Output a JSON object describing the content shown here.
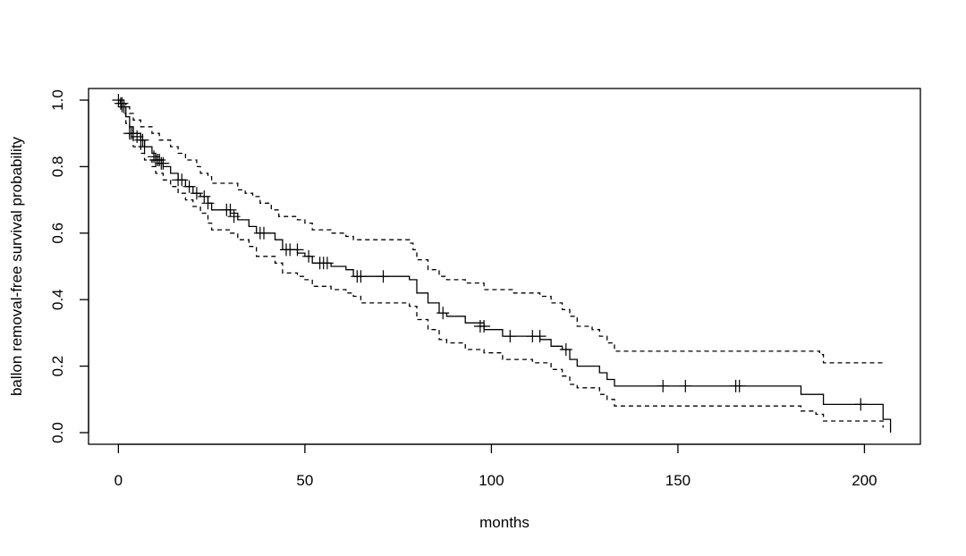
{
  "chart_data": {
    "type": "line",
    "title": "",
    "xlabel": "months",
    "ylabel": "ballon removal-free survival probability",
    "xlim": [
      -8,
      215
    ],
    "ylim": [
      -0.035,
      1.035
    ],
    "x_ticks": [
      0,
      50,
      100,
      150,
      200
    ],
    "x_tick_labels": [
      "0",
      "50",
      "100",
      "150",
      "200"
    ],
    "y_ticks": [
      0.0,
      0.2,
      0.4,
      0.6,
      0.8,
      1.0
    ],
    "y_tick_labels": [
      "0.0",
      "0.2",
      "0.4",
      "0.6",
      "0.8",
      "1.0"
    ],
    "grid": false,
    "legend": "none",
    "series": [
      {
        "role": "estimate",
        "style": "solid",
        "color": "#000000",
        "steps": [
          [
            0,
            1.0
          ],
          [
            0.5,
            0.99
          ],
          [
            1,
            0.98
          ],
          [
            2,
            0.95
          ],
          [
            3,
            0.92
          ],
          [
            4,
            0.9
          ],
          [
            6,
            0.88
          ],
          [
            7,
            0.86
          ],
          [
            9,
            0.84
          ],
          [
            10,
            0.82
          ],
          [
            12,
            0.8
          ],
          [
            14,
            0.78
          ],
          [
            16,
            0.76
          ],
          [
            18,
            0.74
          ],
          [
            20,
            0.72
          ],
          [
            22,
            0.71
          ],
          [
            24,
            0.69
          ],
          [
            25,
            0.67
          ],
          [
            30,
            0.66
          ],
          [
            32,
            0.64
          ],
          [
            35,
            0.62
          ],
          [
            37,
            0.6
          ],
          [
            42,
            0.58
          ],
          [
            44,
            0.55
          ],
          [
            48,
            0.54
          ],
          [
            50,
            0.53
          ],
          [
            52,
            0.51
          ],
          [
            57,
            0.5
          ],
          [
            61,
            0.49
          ],
          [
            63,
            0.47
          ],
          [
            78,
            0.46
          ],
          [
            80,
            0.42
          ],
          [
            83,
            0.39
          ],
          [
            86,
            0.36
          ],
          [
            88,
            0.35
          ],
          [
            93,
            0.33
          ],
          [
            98,
            0.31
          ],
          [
            103,
            0.29
          ],
          [
            113,
            0.28
          ],
          [
            116,
            0.26
          ],
          [
            119,
            0.25
          ],
          [
            121,
            0.22
          ],
          [
            123,
            0.2
          ],
          [
            129,
            0.18
          ],
          [
            131,
            0.16
          ],
          [
            133,
            0.14
          ],
          [
            183,
            0.115
          ],
          [
            189,
            0.085
          ],
          [
            205,
            0.04
          ],
          [
            207,
            0.0
          ]
        ],
        "end_x": 207
      },
      {
        "role": "upper-ci",
        "style": "dashed",
        "color": "#000000",
        "steps": [
          [
            0,
            1.0
          ],
          [
            1,
            0.99
          ],
          [
            2,
            0.98
          ],
          [
            3,
            0.96
          ],
          [
            4,
            0.94
          ],
          [
            6,
            0.92
          ],
          [
            9,
            0.9
          ],
          [
            11,
            0.88
          ],
          [
            14,
            0.86
          ],
          [
            16,
            0.84
          ],
          [
            18,
            0.82
          ],
          [
            21,
            0.8
          ],
          [
            22,
            0.78
          ],
          [
            24,
            0.77
          ],
          [
            25,
            0.75
          ],
          [
            32,
            0.73
          ],
          [
            34,
            0.72
          ],
          [
            36,
            0.71
          ],
          [
            38,
            0.69
          ],
          [
            41,
            0.67
          ],
          [
            43,
            0.65
          ],
          [
            48,
            0.64
          ],
          [
            50,
            0.63
          ],
          [
            52,
            0.61
          ],
          [
            57,
            0.6
          ],
          [
            61,
            0.59
          ],
          [
            63,
            0.58
          ],
          [
            78,
            0.57
          ],
          [
            79,
            0.55
          ],
          [
            80,
            0.52
          ],
          [
            83,
            0.49
          ],
          [
            86,
            0.47
          ],
          [
            88,
            0.46
          ],
          [
            93,
            0.45
          ],
          [
            98,
            0.43
          ],
          [
            106,
            0.42
          ],
          [
            113,
            0.41
          ],
          [
            116,
            0.39
          ],
          [
            119,
            0.37
          ],
          [
            121,
            0.35
          ],
          [
            123,
            0.32
          ],
          [
            127,
            0.31
          ],
          [
            129,
            0.29
          ],
          [
            131,
            0.27
          ],
          [
            133,
            0.245
          ],
          [
            188,
            0.235
          ],
          [
            189,
            0.21
          ],
          [
            205,
            0.215
          ]
        ],
        "end_x": 205
      },
      {
        "role": "lower-ci",
        "style": "dashed",
        "color": "#000000",
        "steps": [
          [
            0,
            0.99
          ],
          [
            1,
            0.96
          ],
          [
            2,
            0.93
          ],
          [
            3,
            0.89
          ],
          [
            4,
            0.86
          ],
          [
            6,
            0.84
          ],
          [
            7,
            0.82
          ],
          [
            9,
            0.8
          ],
          [
            10,
            0.78
          ],
          [
            12,
            0.76
          ],
          [
            14,
            0.74
          ],
          [
            16,
            0.72
          ],
          [
            18,
            0.7
          ],
          [
            20,
            0.68
          ],
          [
            22,
            0.66
          ],
          [
            24,
            0.63
          ],
          [
            25,
            0.61
          ],
          [
            30,
            0.6
          ],
          [
            32,
            0.58
          ],
          [
            35,
            0.56
          ],
          [
            37,
            0.53
          ],
          [
            42,
            0.51
          ],
          [
            44,
            0.48
          ],
          [
            48,
            0.47
          ],
          [
            50,
            0.46
          ],
          [
            52,
            0.44
          ],
          [
            57,
            0.43
          ],
          [
            61,
            0.42
          ],
          [
            63,
            0.41
          ],
          [
            65,
            0.39
          ],
          [
            78,
            0.38
          ],
          [
            80,
            0.34
          ],
          [
            83,
            0.31
          ],
          [
            86,
            0.28
          ],
          [
            88,
            0.27
          ],
          [
            93,
            0.25
          ],
          [
            98,
            0.24
          ],
          [
            103,
            0.22
          ],
          [
            111,
            0.21
          ],
          [
            116,
            0.19
          ],
          [
            119,
            0.17
          ],
          [
            121,
            0.145
          ],
          [
            123,
            0.135
          ],
          [
            129,
            0.115
          ],
          [
            131,
            0.1
          ],
          [
            133,
            0.08
          ],
          [
            183,
            0.065
          ],
          [
            187,
            0.055
          ],
          [
            189,
            0.035
          ],
          [
            205,
            0.015
          ]
        ],
        "end_x": 205
      }
    ],
    "censor_marks": [
      [
        0,
        1.0
      ],
      [
        0.6,
        0.99
      ],
      [
        1,
        0.99
      ],
      [
        1.5,
        0.98
      ],
      [
        3,
        0.9
      ],
      [
        3.5,
        0.9
      ],
      [
        4,
        0.9
      ],
      [
        5,
        0.89
      ],
      [
        6,
        0.88
      ],
      [
        6.5,
        0.88
      ],
      [
        7,
        0.86
      ],
      [
        9.5,
        0.83
      ],
      [
        10,
        0.82
      ],
      [
        10.5,
        0.82
      ],
      [
        11,
        0.82
      ],
      [
        11.5,
        0.81
      ],
      [
        12,
        0.81
      ],
      [
        16,
        0.76
      ],
      [
        17,
        0.76
      ],
      [
        19,
        0.74
      ],
      [
        21,
        0.72
      ],
      [
        23,
        0.71
      ],
      [
        24,
        0.69
      ],
      [
        29,
        0.67
      ],
      [
        30,
        0.67
      ],
      [
        31,
        0.65
      ],
      [
        38,
        0.6
      ],
      [
        39,
        0.6
      ],
      [
        45,
        0.55
      ],
      [
        46,
        0.55
      ],
      [
        48,
        0.55
      ],
      [
        51,
        0.53
      ],
      [
        54,
        0.51
      ],
      [
        55,
        0.51
      ],
      [
        56,
        0.51
      ],
      [
        64,
        0.47
      ],
      [
        65,
        0.47
      ],
      [
        71,
        0.47
      ],
      [
        87,
        0.36
      ],
      [
        97,
        0.32
      ],
      [
        98,
        0.32
      ],
      [
        105,
        0.29
      ],
      [
        111,
        0.29
      ],
      [
        113,
        0.29
      ],
      [
        120,
        0.25
      ],
      [
        146,
        0.14
      ],
      [
        152,
        0.14
      ],
      [
        165.5,
        0.14
      ],
      [
        166.5,
        0.14
      ],
      [
        199,
        0.085
      ]
    ]
  }
}
